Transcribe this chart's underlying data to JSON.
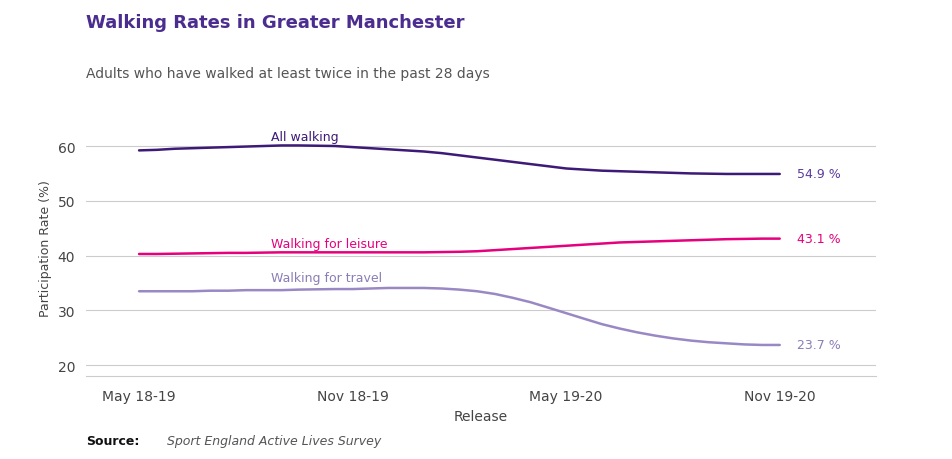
{
  "title": "Walking Rates in Greater Manchester",
  "subtitle": "Adults who have walked at least twice in the past 28 days",
  "xlabel": "Release",
  "ylabel": "Participation Rate (%)",
  "source": "Sport England Active Lives Survey",
  "title_color": "#4b2d8f",
  "subtitle_color": "#555555",
  "background_color": "#ffffff",
  "grid_color": "#cccccc",
  "x_labels": [
    "May 18-19",
    "Nov 18-19",
    "May 19-20",
    "Nov 19-20"
  ],
  "series": [
    {
      "name": "All walking",
      "name_color": "#3d1a78",
      "line_color": "#3d1a78",
      "end_label": "54.9 %",
      "end_label_color": "#5b3a9e",
      "name_x": 0.62,
      "name_y": 61.8,
      "data_x": [
        0.0,
        0.083,
        0.167,
        0.25,
        0.333,
        0.417,
        0.5,
        0.583,
        0.667,
        0.75,
        0.833,
        0.917,
        1.0,
        1.083,
        1.167,
        1.25,
        1.333,
        1.417,
        1.5,
        1.583,
        1.667,
        1.75,
        1.833,
        1.917,
        2.0,
        2.083,
        2.167,
        2.25,
        2.333,
        2.417,
        2.5,
        2.583,
        2.667,
        2.75,
        2.833,
        2.917,
        3.0
      ],
      "data_y": [
        59.2,
        59.3,
        59.5,
        59.6,
        59.7,
        59.8,
        59.9,
        60.0,
        60.1,
        60.1,
        60.05,
        60.0,
        59.8,
        59.6,
        59.4,
        59.2,
        59.0,
        58.7,
        58.3,
        57.9,
        57.5,
        57.1,
        56.7,
        56.3,
        55.9,
        55.7,
        55.5,
        55.4,
        55.3,
        55.2,
        55.1,
        55.0,
        54.95,
        54.9,
        54.9,
        54.9,
        54.9
      ]
    },
    {
      "name": "Walking for leisure",
      "name_color": "#e6007e",
      "line_color": "#e6007e",
      "end_label": "43.1 %",
      "end_label_color": "#e6007e",
      "name_x": 0.62,
      "name_y": 42.3,
      "data_x": [
        0.0,
        0.083,
        0.167,
        0.25,
        0.333,
        0.417,
        0.5,
        0.583,
        0.667,
        0.75,
        0.833,
        0.917,
        1.0,
        1.083,
        1.167,
        1.25,
        1.333,
        1.417,
        1.5,
        1.583,
        1.667,
        1.75,
        1.833,
        1.917,
        2.0,
        2.083,
        2.167,
        2.25,
        2.333,
        2.417,
        2.5,
        2.583,
        2.667,
        2.75,
        2.833,
        2.917,
        3.0
      ],
      "data_y": [
        40.3,
        40.3,
        40.35,
        40.4,
        40.45,
        40.5,
        40.5,
        40.55,
        40.6,
        40.6,
        40.6,
        40.6,
        40.6,
        40.6,
        40.6,
        40.6,
        40.6,
        40.65,
        40.7,
        40.8,
        41.0,
        41.2,
        41.4,
        41.6,
        41.8,
        42.0,
        42.2,
        42.4,
        42.5,
        42.6,
        42.7,
        42.8,
        42.9,
        43.0,
        43.05,
        43.1,
        43.1
      ]
    },
    {
      "name": "Walking for travel",
      "name_color": "#8b7db5",
      "line_color": "#9988c4",
      "end_label": "23.7 %",
      "end_label_color": "#8b7db5",
      "name_x": 0.62,
      "name_y": 36.0,
      "data_x": [
        0.0,
        0.083,
        0.167,
        0.25,
        0.333,
        0.417,
        0.5,
        0.583,
        0.667,
        0.75,
        0.833,
        0.917,
        1.0,
        1.083,
        1.167,
        1.25,
        1.333,
        1.417,
        1.5,
        1.583,
        1.667,
        1.75,
        1.833,
        1.917,
        2.0,
        2.083,
        2.167,
        2.25,
        2.333,
        2.417,
        2.5,
        2.583,
        2.667,
        2.75,
        2.833,
        2.917,
        3.0
      ],
      "data_y": [
        33.5,
        33.5,
        33.5,
        33.5,
        33.6,
        33.6,
        33.7,
        33.7,
        33.7,
        33.8,
        33.85,
        33.9,
        33.9,
        34.0,
        34.1,
        34.1,
        34.1,
        34.0,
        33.8,
        33.5,
        33.0,
        32.3,
        31.5,
        30.5,
        29.5,
        28.5,
        27.5,
        26.7,
        26.0,
        25.4,
        24.9,
        24.5,
        24.2,
        24.0,
        23.8,
        23.7,
        23.7
      ]
    }
  ],
  "ylim": [
    18,
    65
  ],
  "yticks": [
    20,
    30,
    40,
    50,
    60
  ],
  "xlim": [
    -0.25,
    3.45
  ],
  "xticks": [
    0,
    1,
    2,
    3
  ]
}
